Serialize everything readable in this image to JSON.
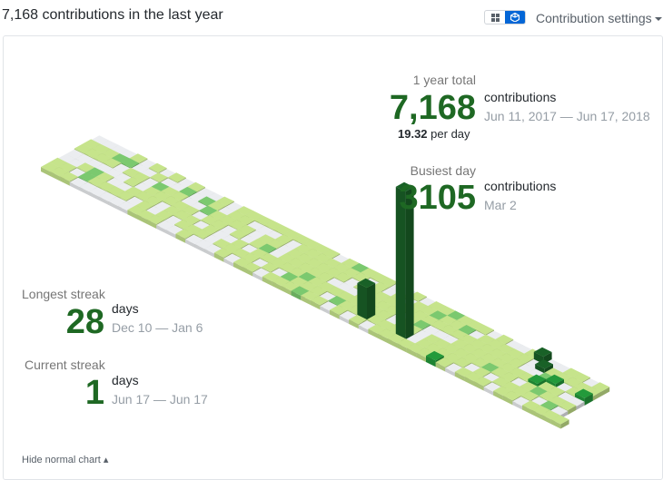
{
  "header": {
    "title": "7,168 contributions in the last year"
  },
  "settings": {
    "label": "Contribution settings"
  },
  "view_toggle": {
    "options": [
      "normal-view",
      "isometric-view"
    ],
    "selected": "isometric-view"
  },
  "colors": {
    "empty": "#ebedf0",
    "level1": "#c6e48b",
    "level2": "#7bc96f",
    "level3": "#239a3b",
    "level4": "#196127",
    "accent": "#0366d6",
    "stat": "#1e6823"
  },
  "stats": {
    "year_total": {
      "label": "1 year total",
      "value": "7,168",
      "unit": "contributions",
      "range": "Jun 11, 2017 — Jun 17, 2018"
    },
    "per_day": {
      "value": "19.32",
      "unit": "per day"
    },
    "busiest_day": {
      "label": "Busiest day",
      "value": "3105",
      "unit": "contributions",
      "range": "Mar 2"
    },
    "longest_streak": {
      "label": "Longest streak",
      "value": "28",
      "unit": "days",
      "range": "Dec 10 — Jan 6"
    },
    "current_streak": {
      "label": "Current streak",
      "value": "1",
      "unit": "days",
      "range": "Jun 17 — Jun 17"
    }
  },
  "footer": {
    "toggle_link": "Hide normal chart ▴"
  }
}
